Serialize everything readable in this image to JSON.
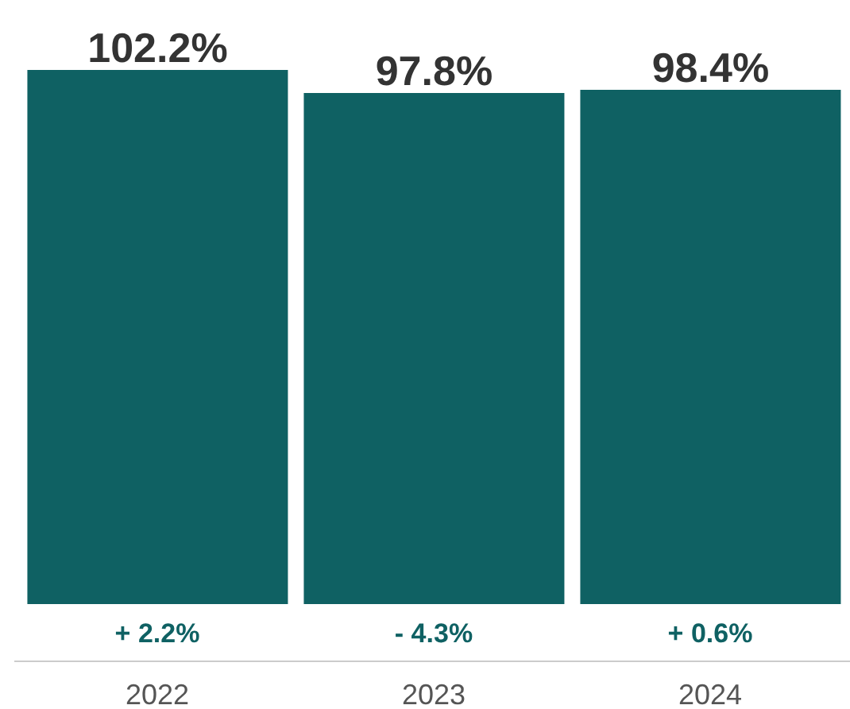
{
  "chart_data": {
    "type": "bar",
    "categories": [
      "2022",
      "2023",
      "2024"
    ],
    "values": [
      102.2,
      97.8,
      98.4
    ],
    "color": "#0f6163",
    "value_labels": [
      "102.2%",
      "97.8%",
      "98.4%"
    ],
    "annotations": [
      "+ 2.2%",
      "- 4.3%",
      "+ 0.6%"
    ]
  }
}
